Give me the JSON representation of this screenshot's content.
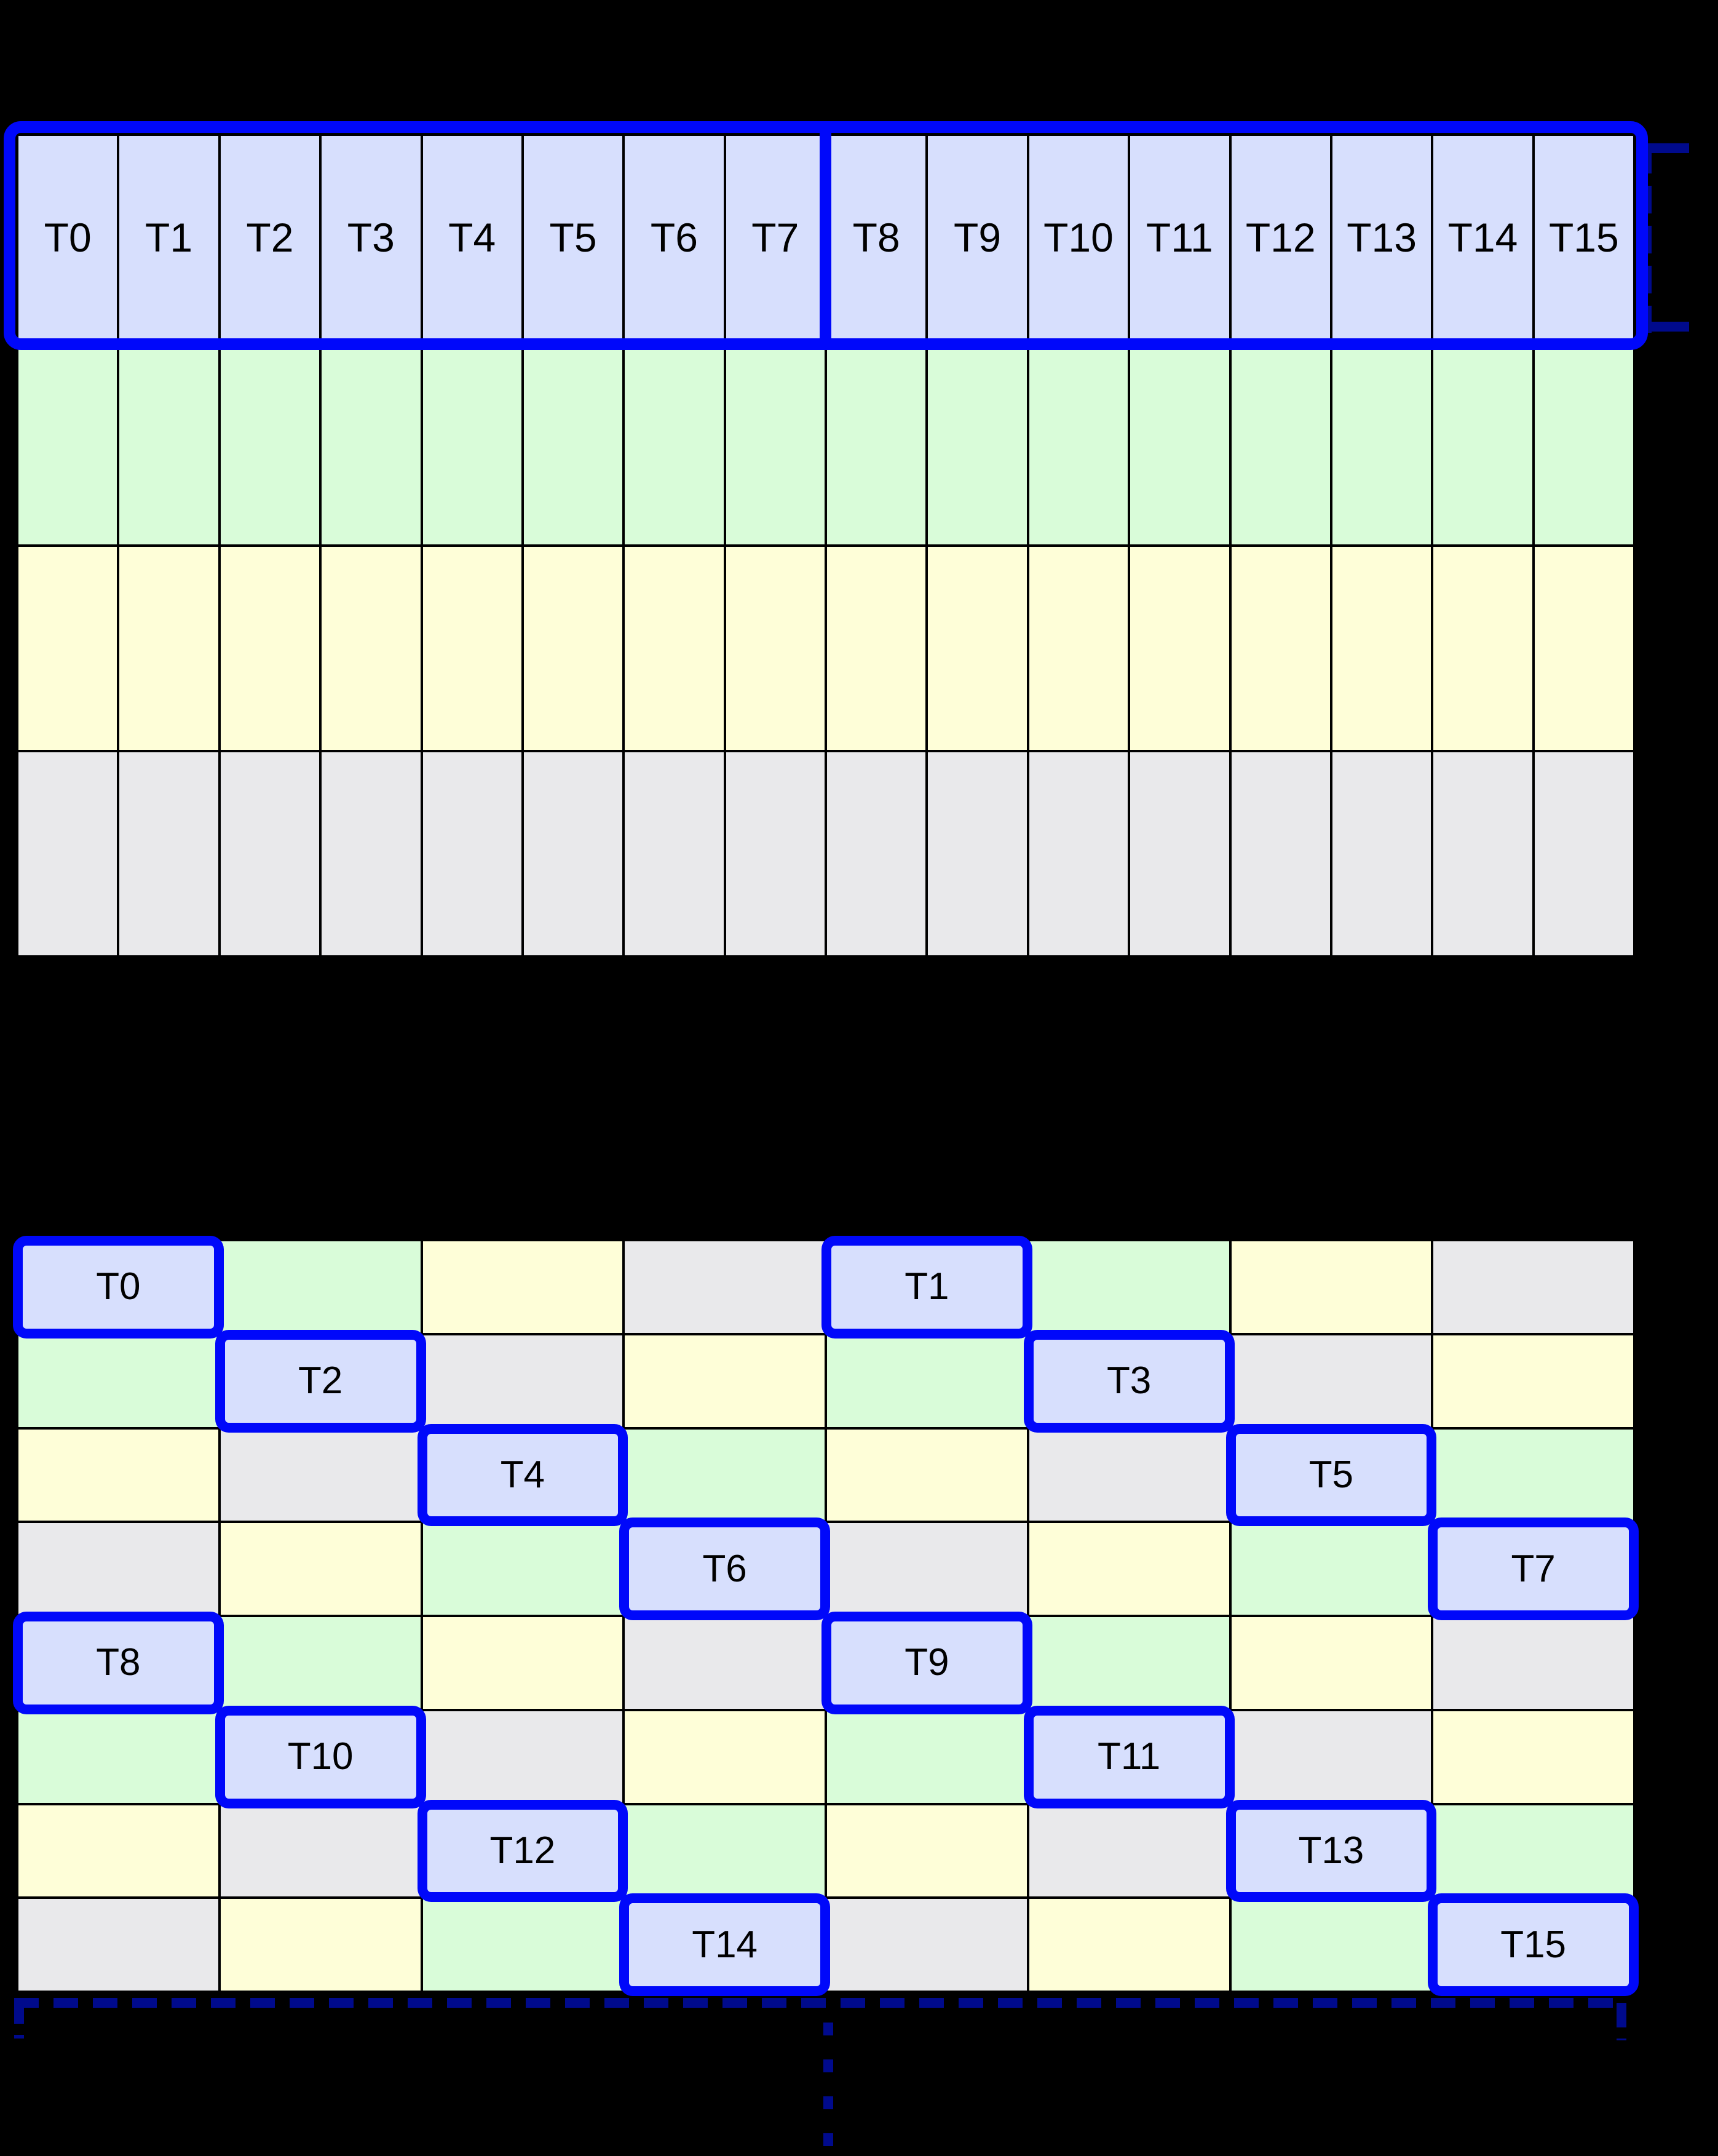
{
  "figure": {
    "background_color": "#000000",
    "description": "Thread-to-memory mapping diagram: one 16-thread row grid (T0-T15) above an 8x8 staggered grid with diagonally placed thread cells"
  },
  "colors": {
    "background": "#000000",
    "thread_fill": "#D7DFFD",
    "green_fill": "#D9FCD9",
    "yellow_fill": "#FEFED8",
    "gray_fill": "#E9E9EB",
    "outline_blue": "#0008FA",
    "bracket_navy": "#000A8C",
    "grid_line": "#000000",
    "label_text": "#000000"
  },
  "top_grid": {
    "columns": 16,
    "row_types": [
      "thread",
      "green",
      "yellow",
      "gray"
    ],
    "thread_labels": [
      "T0",
      "T1",
      "T2",
      "T3",
      "T4",
      "T5",
      "T6",
      "T7",
      "T8",
      "T9",
      "T10",
      "T11",
      "T12",
      "T13",
      "T14",
      "T15"
    ],
    "half_divider_after_column": 8
  },
  "bottom_grid": {
    "columns": 8,
    "rows": [
      [
        {
          "type": "thread",
          "label": "T0"
        },
        {
          "type": "green"
        },
        {
          "type": "yellow"
        },
        {
          "type": "gray"
        },
        {
          "type": "thread",
          "label": "T1"
        },
        {
          "type": "green"
        },
        {
          "type": "yellow"
        },
        {
          "type": "gray"
        }
      ],
      [
        {
          "type": "green"
        },
        {
          "type": "thread",
          "label": "T2"
        },
        {
          "type": "gray"
        },
        {
          "type": "yellow"
        },
        {
          "type": "green"
        },
        {
          "type": "thread",
          "label": "T3"
        },
        {
          "type": "gray"
        },
        {
          "type": "yellow"
        }
      ],
      [
        {
          "type": "yellow"
        },
        {
          "type": "gray"
        },
        {
          "type": "thread",
          "label": "T4"
        },
        {
          "type": "green"
        },
        {
          "type": "yellow"
        },
        {
          "type": "gray"
        },
        {
          "type": "thread",
          "label": "T5"
        },
        {
          "type": "green"
        }
      ],
      [
        {
          "type": "gray"
        },
        {
          "type": "yellow"
        },
        {
          "type": "green"
        },
        {
          "type": "thread",
          "label": "T6"
        },
        {
          "type": "gray"
        },
        {
          "type": "yellow"
        },
        {
          "type": "green"
        },
        {
          "type": "thread",
          "label": "T7"
        }
      ],
      [
        {
          "type": "thread",
          "label": "T8"
        },
        {
          "type": "green"
        },
        {
          "type": "yellow"
        },
        {
          "type": "gray"
        },
        {
          "type": "thread",
          "label": "T9"
        },
        {
          "type": "green"
        },
        {
          "type": "yellow"
        },
        {
          "type": "gray"
        }
      ],
      [
        {
          "type": "green"
        },
        {
          "type": "thread",
          "label": "T10"
        },
        {
          "type": "gray"
        },
        {
          "type": "yellow"
        },
        {
          "type": "green"
        },
        {
          "type": "thread",
          "label": "T11"
        },
        {
          "type": "gray"
        },
        {
          "type": "yellow"
        }
      ],
      [
        {
          "type": "yellow"
        },
        {
          "type": "gray"
        },
        {
          "type": "thread",
          "label": "T12"
        },
        {
          "type": "green"
        },
        {
          "type": "yellow"
        },
        {
          "type": "gray"
        },
        {
          "type": "thread",
          "label": "T13"
        },
        {
          "type": "green"
        }
      ],
      [
        {
          "type": "gray"
        },
        {
          "type": "yellow"
        },
        {
          "type": "green"
        },
        {
          "type": "thread",
          "label": "T14"
        },
        {
          "type": "gray"
        },
        {
          "type": "yellow"
        },
        {
          "type": "green"
        },
        {
          "type": "thread",
          "label": "T15"
        }
      ]
    ]
  }
}
